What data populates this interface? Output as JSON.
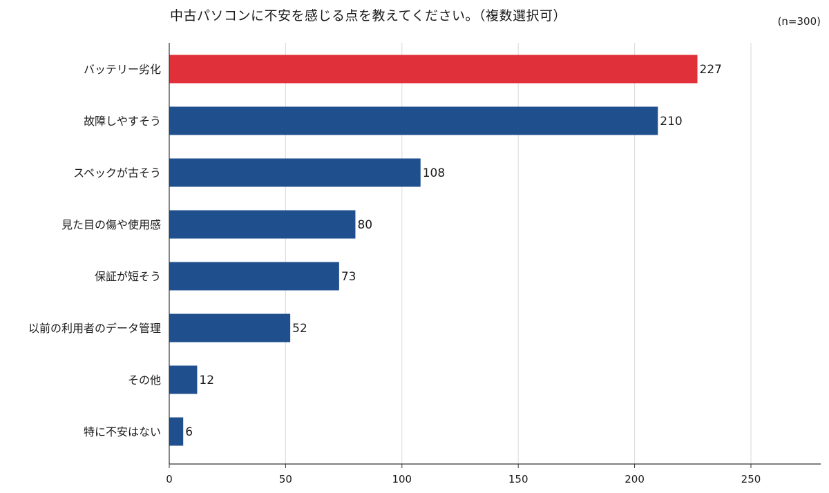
{
  "chart_data": {
    "type": "bar",
    "orientation": "horizontal",
    "title": "中古パソコンに不安を感じる点を教えてください。（複数選択可）",
    "note": "(n=300)",
    "categories": [
      "バッテリー劣化",
      "故障しやすそう",
      "スペックが古そう",
      "見た目の傷や使用感",
      "保証が短そう",
      "以前の利用者のデータ管理",
      "その他",
      "特に不安はない"
    ],
    "values": [
      227,
      210,
      108,
      80,
      73,
      52,
      12,
      6
    ],
    "highlight_index": 0,
    "colors": {
      "highlight": "#e0303a",
      "bar": "#1f4f8c",
      "grid": "#d9d9d9",
      "axis": "#333333"
    },
    "xlim": [
      0,
      280
    ],
    "xticks": [
      0,
      50,
      100,
      150,
      200,
      250
    ],
    "tick_labels": [
      "0",
      "50",
      "100",
      "150",
      "200",
      "250"
    ],
    "grid": true,
    "xlabel": "",
    "ylabel": ""
  }
}
